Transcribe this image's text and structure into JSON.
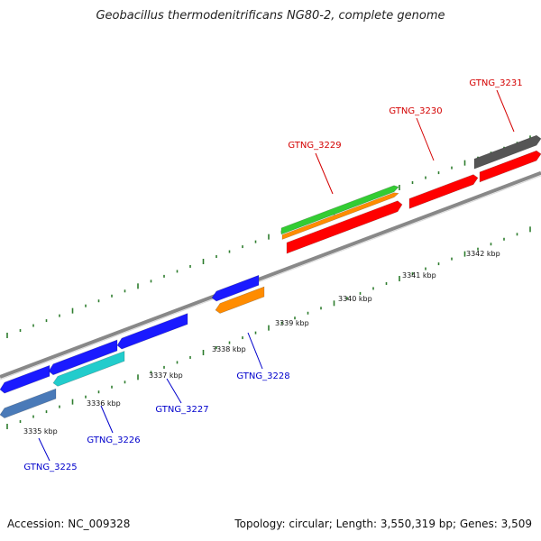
{
  "title": "Geobacillus thermodenitrificans NG80-2, complete genome",
  "footer": {
    "accession": "Accession: NC_009328",
    "stats": "Topology: circular; Length: 3,550,319 bp; Genes: 3,509"
  },
  "colors": {
    "backbone": "#888888",
    "tick_dots": "#2e7d2e",
    "label_forward": "#d40000",
    "label_reverse": "#0000cc"
  },
  "scale_labels": [
    "3335 kbp",
    "3336 kbp",
    "3337 kbp",
    "3338 kbp",
    "3339 kbp",
    "3340 kbp",
    "3341 kbp",
    "3342 kbp"
  ],
  "gene_labels": [
    {
      "text": "GTNG_3225",
      "strand": "reverse"
    },
    {
      "text": "GTNG_3226",
      "strand": "reverse"
    },
    {
      "text": "GTNG_3227",
      "strand": "reverse"
    },
    {
      "text": "GTNG_3228",
      "strand": "reverse"
    },
    {
      "text": "GTNG_3229",
      "strand": "forward"
    },
    {
      "text": "GTNG_3230",
      "strand": "forward"
    },
    {
      "text": "GTNG_3231",
      "strand": "forward"
    }
  ],
  "features": [
    {
      "name": "forward-gene-red-1",
      "color": "#ff0000"
    },
    {
      "name": "forward-gene-red-2",
      "color": "#ff0000"
    },
    {
      "name": "forward-gene-red-3",
      "color": "#ff0000"
    },
    {
      "name": "forward-cds-orange",
      "color": "#ff8c00"
    },
    {
      "name": "forward-rna-green",
      "color": "#33cc33"
    },
    {
      "name": "forward-gene-gray",
      "color": "#555555"
    },
    {
      "name": "reverse-gene-blue-1",
      "color": "#1a1aff"
    },
    {
      "name": "reverse-gene-blue-2",
      "color": "#1a1aff"
    },
    {
      "name": "reverse-gene-blue-3",
      "color": "#1a1aff"
    },
    {
      "name": "reverse-gene-blue-4",
      "color": "#1a1aff"
    },
    {
      "name": "reverse-cds-orange",
      "color": "#ff8c00"
    },
    {
      "name": "reverse-cds-cyan",
      "color": "#22cccc"
    },
    {
      "name": "reverse-gene-steelblue",
      "color": "#4a7ab8"
    }
  ]
}
